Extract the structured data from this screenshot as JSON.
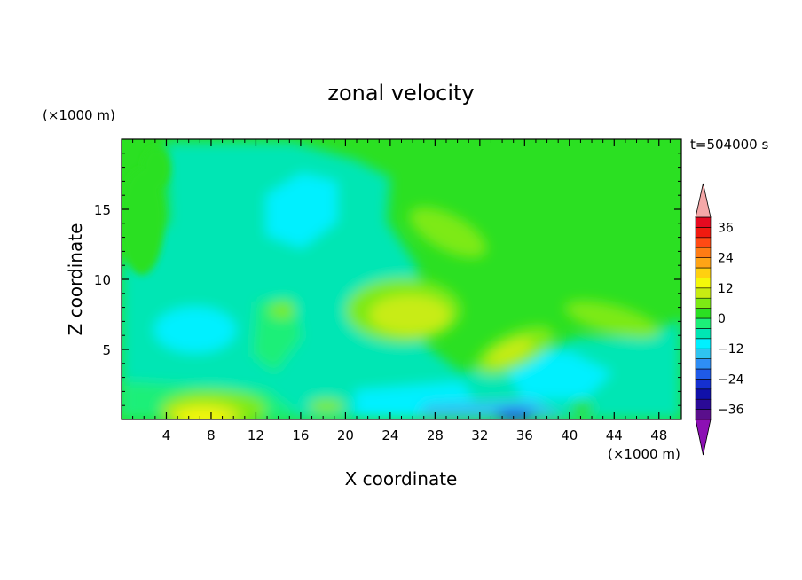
{
  "chart_data": {
    "type": "heatmap",
    "title": "zonal velocity",
    "xlabel": "X coordinate",
    "ylabel": "Z coordinate",
    "x_unit": "(×1000 m)",
    "y_unit": "(×1000 m)",
    "time_label": "t=504000 s",
    "xlim": [
      0,
      50
    ],
    "ylim": [
      0,
      20
    ],
    "x_ticks": [
      4,
      8,
      12,
      16,
      20,
      24,
      28,
      32,
      36,
      40,
      44,
      48
    ],
    "y_ticks": [
      5,
      10,
      15
    ],
    "colorbar": {
      "levels": [
        -40,
        -36,
        -32,
        -28,
        -24,
        -20,
        -16,
        -12,
        -8,
        -4,
        0,
        4,
        8,
        12,
        16,
        20,
        24,
        28,
        32,
        36,
        40
      ],
      "labels": [
        "36",
        "24",
        "12",
        "0",
        "−12",
        "−24",
        "−36"
      ],
      "label_values": [
        36,
        24,
        12,
        0,
        -12,
        -24,
        -36
      ],
      "colors": [
        "#5a0f8c",
        "#2a0a96",
        "#1010a8",
        "#1530d0",
        "#1f5ae8",
        "#2e8ef5",
        "#2fc4f0",
        "#00f0ff",
        "#00e6b4",
        "#1cef78",
        "#2be022",
        "#7dea14",
        "#c8ec12",
        "#f4f80a",
        "#ffd010",
        "#ffa416",
        "#ff7c14",
        "#ff4a14",
        "#f01a10",
        "#e60a20"
      ],
      "under_color": "#8c10b4",
      "over_color": "#f5a8a8"
    },
    "features": [
      {
        "x": 8,
        "z": 0.6,
        "value": 16
      },
      {
        "x": 26,
        "z": 7.8,
        "value": 8
      },
      {
        "x": 27,
        "z": 13.5,
        "value": 4
      },
      {
        "x": 34,
        "z": 4.5,
        "value": 8
      },
      {
        "x": 7.5,
        "z": 6.5,
        "value": -12
      },
      {
        "x": 15,
        "z": 16,
        "value": -8
      },
      {
        "x": 34.5,
        "z": 0.4,
        "value": -16
      }
    ]
  }
}
